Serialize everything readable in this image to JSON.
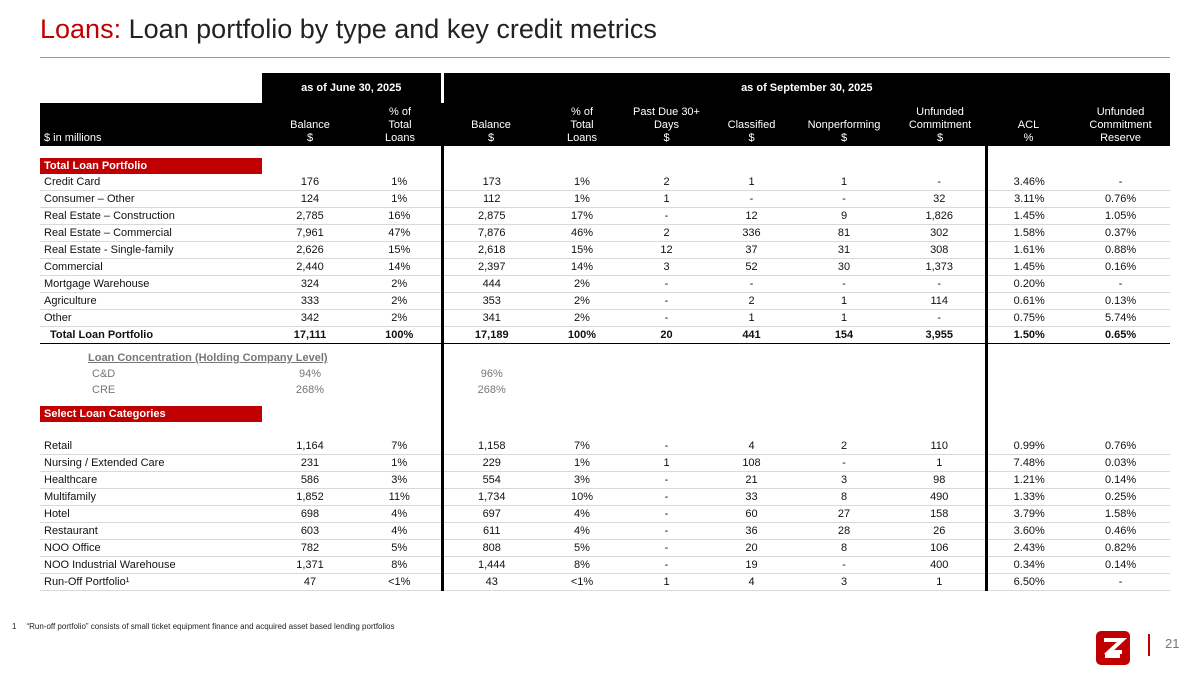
{
  "header": {
    "title_prefix": "Loans:",
    "title": "Loan portfolio by type and key credit metrics"
  },
  "table": {
    "group_headers": [
      "as of June 30, 2025",
      "as of September 30, 2025"
    ],
    "unit_label": "$ in millions",
    "columns": [
      "Balance\n$",
      "% of\nTotal\nLoans",
      "Balance\n$",
      "% of\nTotal\nLoans",
      "Past Due 30+\nDays\n$",
      "Classified\n$",
      "Nonperforming\n$",
      "Unfunded\nCommitment\n$",
      "ACL\n%",
      "Unfunded\nCommitment\nReserve"
    ],
    "sections": [
      {
        "title": "Total Loan Portfolio",
        "rows": [
          [
            "Credit Card",
            "176",
            "1%",
            "173",
            "1%",
            "2",
            "1",
            "1",
            "-",
            "3.46%",
            "-"
          ],
          [
            "Consumer – Other",
            "124",
            "1%",
            "112",
            "1%",
            "1",
            "-",
            "-",
            "32",
            "3.11%",
            "0.76%"
          ],
          [
            "Real Estate – Construction",
            "2,785",
            "16%",
            "2,875",
            "17%",
            "-",
            "12",
            "9",
            "1,826",
            "1.45%",
            "1.05%"
          ],
          [
            "Real Estate – Commercial",
            "7,961",
            "47%",
            "7,876",
            "46%",
            "2",
            "336",
            "81",
            "302",
            "1.58%",
            "0.37%"
          ],
          [
            "Real Estate - Single-family",
            "2,626",
            "15%",
            "2,618",
            "15%",
            "12",
            "37",
            "31",
            "308",
            "1.61%",
            "0.88%"
          ],
          [
            "Commercial",
            "2,440",
            "14%",
            "2,397",
            "14%",
            "3",
            "52",
            "30",
            "1,373",
            "1.45%",
            "0.16%"
          ],
          [
            "Mortgage Warehouse",
            "324",
            "2%",
            "444",
            "2%",
            "-",
            "-",
            "-",
            "-",
            "0.20%",
            "-"
          ],
          [
            "Agriculture",
            "333",
            "2%",
            "353",
            "2%",
            "-",
            "2",
            "1",
            "114",
            "0.61%",
            "0.13%"
          ],
          [
            "Other",
            "342",
            "2%",
            "341",
            "2%",
            "-",
            "1",
            "1",
            "-",
            "0.75%",
            "5.74%"
          ]
        ],
        "total": [
          "Total Loan Portfolio",
          "17,111",
          "100%",
          "17,189",
          "100%",
          "20",
          "441",
          "154",
          "3,955",
          "1.50%",
          "0.65%"
        ]
      },
      {
        "title": "Select Loan Categories",
        "rows": [
          [
            "Retail",
            "1,164",
            "7%",
            "1,158",
            "7%",
            "-",
            "4",
            "2",
            "110",
            "0.99%",
            "0.76%"
          ],
          [
            "Nursing / Extended Care",
            "231",
            "1%",
            "229",
            "1%",
            "1",
            "108",
            "-",
            "1",
            "7.48%",
            "0.03%"
          ],
          [
            "Healthcare",
            "586",
            "3%",
            "554",
            "3%",
            "-",
            "21",
            "3",
            "98",
            "1.21%",
            "0.14%"
          ],
          [
            "Multifamily",
            "1,852",
            "11%",
            "1,734",
            "10%",
            "-",
            "33",
            "8",
            "490",
            "1.33%",
            "0.25%"
          ],
          [
            "Hotel",
            "698",
            "4%",
            "697",
            "4%",
            "-",
            "60",
            "27",
            "158",
            "3.79%",
            "1.58%"
          ],
          [
            "Restaurant",
            "603",
            "4%",
            "611",
            "4%",
            "-",
            "36",
            "28",
            "26",
            "3.60%",
            "0.46%"
          ],
          [
            "NOO Office",
            "782",
            "5%",
            "808",
            "5%",
            "-",
            "20",
            "8",
            "106",
            "2.43%",
            "0.82%"
          ],
          [
            "NOO Industrial Warehouse",
            "1,371",
            "8%",
            "1,444",
            "8%",
            "-",
            "19",
            "-",
            "400",
            "0.34%",
            "0.14%"
          ],
          [
            "Run-Off Portfolio¹",
            "47",
            "<1%",
            "43",
            "<1%",
            "1",
            "4",
            "3",
            "1",
            "6.50%",
            "-"
          ]
        ]
      }
    ],
    "concentration": {
      "title": "Loan Concentration (Holding Company Level)",
      "rows": [
        [
          "C&D",
          "94%",
          "96%"
        ],
        [
          "CRE",
          "268%",
          "268%"
        ]
      ]
    }
  },
  "footnote": {
    "marker": "1",
    "text": "“Run-off portfolio” consists of small ticket equipment finance and acquired asset based lending portfolios"
  },
  "page_number": "21"
}
